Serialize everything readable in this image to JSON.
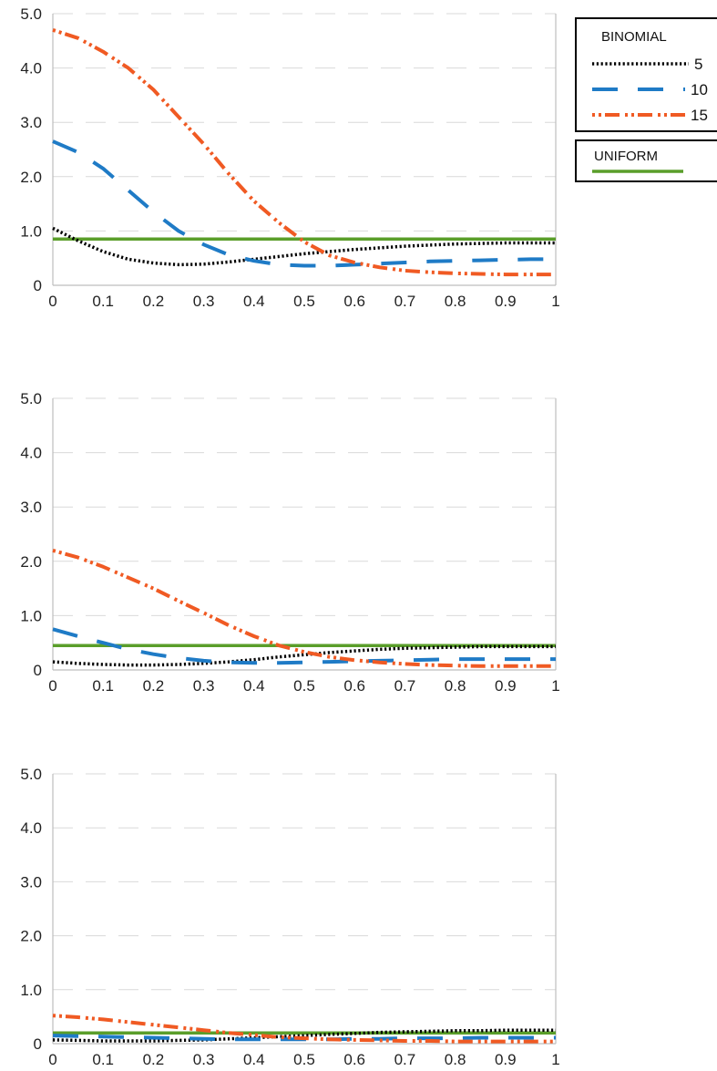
{
  "legend": {
    "binomial_title": "BINOMIAL",
    "uniform_title": "UNIFORM",
    "entries": [
      {
        "label": "5",
        "series": "n5"
      },
      {
        "label": "10",
        "series": "n10"
      },
      {
        "label": "15",
        "series": "n15"
      }
    ]
  },
  "colors": {
    "n5": "#000000",
    "n10": "#1f7bc6",
    "n15": "#f05a23",
    "uniform": "#5a9e2a",
    "grid": "#d9d9d9",
    "axis": "#bdbdbd"
  },
  "chart_data": [
    {
      "type": "line",
      "title": "",
      "xlabel": "",
      "ylabel": "",
      "xlim": [
        0,
        1
      ],
      "ylim": [
        0,
        5
      ],
      "x_ticks": [
        "0",
        "0.1",
        "0.2",
        "0.3",
        "0.4",
        "0.5",
        "0.6",
        "0.7",
        "0.8",
        "0.9",
        "1"
      ],
      "y_ticks": [
        "0",
        "1.0",
        "2.0",
        "3.0",
        "4.0",
        "5.0"
      ],
      "grid": true,
      "x": [
        0,
        0.05,
        0.1,
        0.15,
        0.2,
        0.25,
        0.3,
        0.35,
        0.4,
        0.45,
        0.5,
        0.55,
        0.6,
        0.65,
        0.7,
        0.75,
        0.8,
        0.85,
        0.9,
        0.95,
        1
      ],
      "series": [
        {
          "name": "5",
          "key": "n5",
          "values": [
            1.05,
            0.82,
            0.62,
            0.48,
            0.41,
            0.38,
            0.39,
            0.43,
            0.48,
            0.53,
            0.58,
            0.62,
            0.66,
            0.69,
            0.72,
            0.74,
            0.76,
            0.77,
            0.78,
            0.78,
            0.78
          ]
        },
        {
          "name": "10",
          "key": "n10",
          "values": [
            2.65,
            2.45,
            2.15,
            1.75,
            1.35,
            1.0,
            0.75,
            0.56,
            0.45,
            0.38,
            0.36,
            0.36,
            0.38,
            0.4,
            0.42,
            0.44,
            0.45,
            0.46,
            0.47,
            0.48,
            0.48
          ]
        },
        {
          "name": "15",
          "key": "n15",
          "values": [
            4.7,
            4.55,
            4.3,
            4.0,
            3.6,
            3.1,
            2.6,
            2.05,
            1.55,
            1.15,
            0.8,
            0.55,
            0.42,
            0.33,
            0.27,
            0.24,
            0.22,
            0.21,
            0.2,
            0.2,
            0.2
          ]
        },
        {
          "name": "UNIFORM",
          "key": "uniform",
          "values": [
            0.85,
            0.85,
            0.85,
            0.85,
            0.85,
            0.85,
            0.85,
            0.85,
            0.85,
            0.85,
            0.85,
            0.85,
            0.85,
            0.85,
            0.85,
            0.85,
            0.85,
            0.85,
            0.85,
            0.85,
            0.85
          ]
        }
      ]
    },
    {
      "type": "line",
      "title": "",
      "xlabel": "",
      "ylabel": "",
      "xlim": [
        0,
        1
      ],
      "ylim": [
        0,
        5
      ],
      "x_ticks": [
        "0",
        "0.1",
        "0.2",
        "0.3",
        "0.4",
        "0.5",
        "0.6",
        "0.7",
        "0.8",
        "0.9",
        "1"
      ],
      "y_ticks": [
        "0",
        "1.0",
        "2.0",
        "3.0",
        "4.0",
        "5.0"
      ],
      "grid": true,
      "x": [
        0,
        0.05,
        0.1,
        0.15,
        0.2,
        0.25,
        0.3,
        0.35,
        0.4,
        0.45,
        0.5,
        0.55,
        0.6,
        0.65,
        0.7,
        0.75,
        0.8,
        0.85,
        0.9,
        0.95,
        1
      ],
      "series": [
        {
          "name": "5",
          "key": "n5",
          "values": [
            0.15,
            0.12,
            0.1,
            0.09,
            0.09,
            0.1,
            0.12,
            0.15,
            0.19,
            0.24,
            0.28,
            0.32,
            0.35,
            0.38,
            0.4,
            0.41,
            0.42,
            0.43,
            0.43,
            0.43,
            0.43
          ]
        },
        {
          "name": "10",
          "key": "n10",
          "values": [
            0.75,
            0.62,
            0.5,
            0.38,
            0.29,
            0.22,
            0.17,
            0.14,
            0.13,
            0.13,
            0.14,
            0.15,
            0.16,
            0.17,
            0.18,
            0.19,
            0.2,
            0.2,
            0.2,
            0.2,
            0.2
          ]
        },
        {
          "name": "15",
          "key": "n15",
          "values": [
            2.2,
            2.07,
            1.9,
            1.7,
            1.5,
            1.27,
            1.05,
            0.82,
            0.62,
            0.45,
            0.33,
            0.24,
            0.18,
            0.14,
            0.11,
            0.09,
            0.08,
            0.07,
            0.07,
            0.07,
            0.07
          ]
        },
        {
          "name": "UNIFORM",
          "key": "uniform",
          "values": [
            0.45,
            0.45,
            0.45,
            0.45,
            0.45,
            0.45,
            0.45,
            0.45,
            0.45,
            0.45,
            0.45,
            0.45,
            0.45,
            0.45,
            0.45,
            0.45,
            0.45,
            0.45,
            0.45,
            0.45,
            0.45
          ]
        }
      ]
    },
    {
      "type": "line",
      "title": "",
      "xlabel": "",
      "ylabel": "",
      "xlim": [
        0,
        1
      ],
      "ylim": [
        0,
        5
      ],
      "x_ticks": [
        "0",
        "0.1",
        "0.2",
        "0.3",
        "0.4",
        "0.5",
        "0.6",
        "0.7",
        "0.8",
        "0.9",
        "1"
      ],
      "y_ticks": [
        "0",
        "1.0",
        "2.0",
        "3.0",
        "4.0",
        "5.0"
      ],
      "grid": true,
      "x": [
        0,
        0.05,
        0.1,
        0.15,
        0.2,
        0.25,
        0.3,
        0.35,
        0.4,
        0.45,
        0.5,
        0.55,
        0.6,
        0.65,
        0.7,
        0.75,
        0.8,
        0.85,
        0.9,
        0.95,
        1
      ],
      "series": [
        {
          "name": "5",
          "key": "n5",
          "values": [
            0.07,
            0.06,
            0.05,
            0.05,
            0.05,
            0.06,
            0.07,
            0.09,
            0.11,
            0.13,
            0.15,
            0.17,
            0.19,
            0.21,
            0.22,
            0.23,
            0.24,
            0.24,
            0.25,
            0.25,
            0.25
          ]
        },
        {
          "name": "10",
          "key": "n10",
          "values": [
            0.15,
            0.14,
            0.13,
            0.12,
            0.11,
            0.1,
            0.09,
            0.08,
            0.08,
            0.08,
            0.08,
            0.08,
            0.09,
            0.09,
            0.1,
            0.1,
            0.1,
            0.11,
            0.11,
            0.11,
            0.11
          ]
        },
        {
          "name": "15",
          "key": "n15",
          "values": [
            0.52,
            0.49,
            0.45,
            0.4,
            0.35,
            0.3,
            0.25,
            0.2,
            0.16,
            0.12,
            0.1,
            0.08,
            0.07,
            0.06,
            0.05,
            0.05,
            0.04,
            0.04,
            0.04,
            0.04,
            0.04
          ]
        },
        {
          "name": "UNIFORM",
          "key": "uniform",
          "values": [
            0.2,
            0.2,
            0.2,
            0.2,
            0.2,
            0.2,
            0.2,
            0.2,
            0.2,
            0.2,
            0.2,
            0.2,
            0.2,
            0.2,
            0.2,
            0.2,
            0.2,
            0.2,
            0.2,
            0.2,
            0.2
          ]
        }
      ]
    }
  ]
}
